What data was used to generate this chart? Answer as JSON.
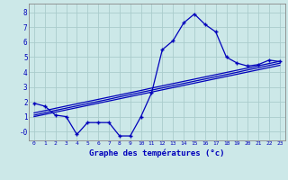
{
  "background_color": "#cce8e8",
  "grid_color": "#aacccc",
  "line_color": "#0000bb",
  "x_hours": [
    0,
    1,
    2,
    3,
    4,
    5,
    6,
    7,
    8,
    9,
    10,
    11,
    12,
    13,
    14,
    15,
    16,
    17,
    18,
    19,
    20,
    21,
    22,
    23
  ],
  "temp_line": [
    1.9,
    1.7,
    1.1,
    1.0,
    -0.2,
    0.6,
    0.6,
    0.6,
    -0.3,
    -0.3,
    1.0,
    2.6,
    5.5,
    6.1,
    7.3,
    7.9,
    7.2,
    6.7,
    5.0,
    4.6,
    4.4,
    4.5,
    4.8,
    4.7
  ],
  "trend_line1": [
    1.0,
    1.15,
    1.3,
    1.45,
    1.6,
    1.75,
    1.9,
    2.05,
    2.2,
    2.35,
    2.5,
    2.65,
    2.8,
    2.95,
    3.1,
    3.25,
    3.4,
    3.55,
    3.7,
    3.85,
    4.0,
    4.15,
    4.3,
    4.45
  ],
  "trend_line2": [
    1.1,
    1.26,
    1.42,
    1.57,
    1.72,
    1.87,
    2.02,
    2.17,
    2.33,
    2.48,
    2.63,
    2.78,
    2.93,
    3.08,
    3.23,
    3.38,
    3.53,
    3.68,
    3.83,
    3.98,
    4.14,
    4.29,
    4.44,
    4.59
  ],
  "trend_line3": [
    1.25,
    1.4,
    1.56,
    1.71,
    1.86,
    2.01,
    2.16,
    2.31,
    2.46,
    2.61,
    2.76,
    2.92,
    3.07,
    3.22,
    3.37,
    3.52,
    3.67,
    3.82,
    3.97,
    4.12,
    4.27,
    4.42,
    4.57,
    4.72
  ],
  "ylim_min": -0.6,
  "ylim_max": 8.6,
  "ytick_labels": [
    "-0",
    "1",
    "2",
    "3",
    "4",
    "5",
    "6",
    "7",
    "8"
  ],
  "ytick_values": [
    0,
    1,
    2,
    3,
    4,
    5,
    6,
    7,
    8
  ],
  "xlabel": "Graphe des températures (°c)"
}
